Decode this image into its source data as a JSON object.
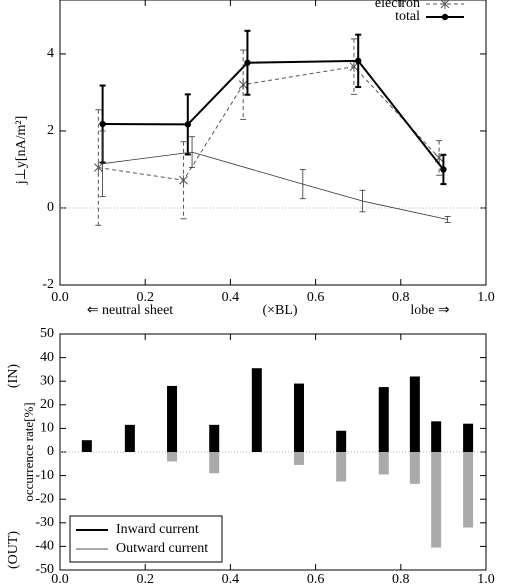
{
  "chart_data": [
    {
      "type": "line",
      "ylabel": "j⊥y[nA/m²]",
      "annotations": [
        "⇐ neutral sheet",
        "(×BL)",
        "lobe ⇒"
      ],
      "xlim": [
        0,
        1
      ],
      "xticks": [
        {
          "value": 0,
          "label": "0.0"
        },
        0.2,
        0.4,
        0.6,
        0.8,
        {
          "value": 1,
          "label": "1.0"
        }
      ],
      "ylim": [
        -2,
        5.4
      ],
      "yticks": [
        -2,
        0,
        2,
        4
      ],
      "reference_line": 0,
      "legend": "top-right",
      "series": [
        {
          "name": "electron",
          "color": "#555555",
          "dashed": true,
          "marker": "x",
          "line_width": 1,
          "x": [
            0.09,
            0.29,
            0.43,
            0.69,
            0.89
          ],
          "values": [
            1.05,
            0.72,
            3.2,
            3.67,
            1.3
          ],
          "errors": [
            1.5,
            1.0,
            0.9,
            0.72,
            0.45
          ]
        },
        {
          "name": "total",
          "color": "#000000",
          "dashed": false,
          "marker": "circle",
          "line_width": 2,
          "x": [
            0.1,
            0.3,
            0.44,
            0.7,
            0.9
          ],
          "values": [
            2.18,
            2.17,
            3.77,
            3.82,
            1.0
          ],
          "errors": [
            1.0,
            0.78,
            0.83,
            0.68,
            0.38
          ]
        },
        {
          "color": "#333333",
          "dashed": false,
          "marker": "none",
          "line_width": 0.8,
          "x": [
            0.1,
            0.31,
            0.57,
            0.71,
            0.91
          ],
          "values": [
            1.15,
            1.45,
            0.62,
            0.18,
            -0.3
          ],
          "errors": [
            0.85,
            0.4,
            0.38,
            0.28,
            0.08
          ]
        }
      ]
    },
    {
      "type": "bar",
      "ylabel": "occurrence rate[%]",
      "ylabel_in": "(IN)",
      "ylabel_out": "(OUT)",
      "xlim": [
        0,
        1
      ],
      "xticks": [
        {
          "value": 0,
          "label": "0.0"
        },
        0.2,
        0.4,
        0.6,
        0.8,
        {
          "value": 1,
          "label": "1.0"
        }
      ],
      "ylim": [
        -50,
        50
      ],
      "yticks": [
        50,
        40,
        30,
        20,
        10,
        0,
        -10,
        -20,
        -30,
        -40,
        -50
      ],
      "reference_line": 0,
      "legend": "bottom-left",
      "x": [
        0.063,
        0.164,
        0.263,
        0.362,
        0.462,
        0.561,
        0.66,
        0.76,
        0.833,
        0.883,
        0.958
      ],
      "series": [
        {
          "name": "Inward current",
          "color": "#000000",
          "values": [
            5,
            11.5,
            28,
            11.5,
            35.5,
            29,
            9,
            27.5,
            32,
            13,
            12
          ]
        },
        {
          "name": "Outward current",
          "color": "#aaaaaa",
          "values": [
            0,
            0,
            -4,
            -9,
            0,
            -5.5,
            -12.5,
            -9.5,
            -13.5,
            -40.5,
            -32
          ]
        }
      ]
    }
  ]
}
